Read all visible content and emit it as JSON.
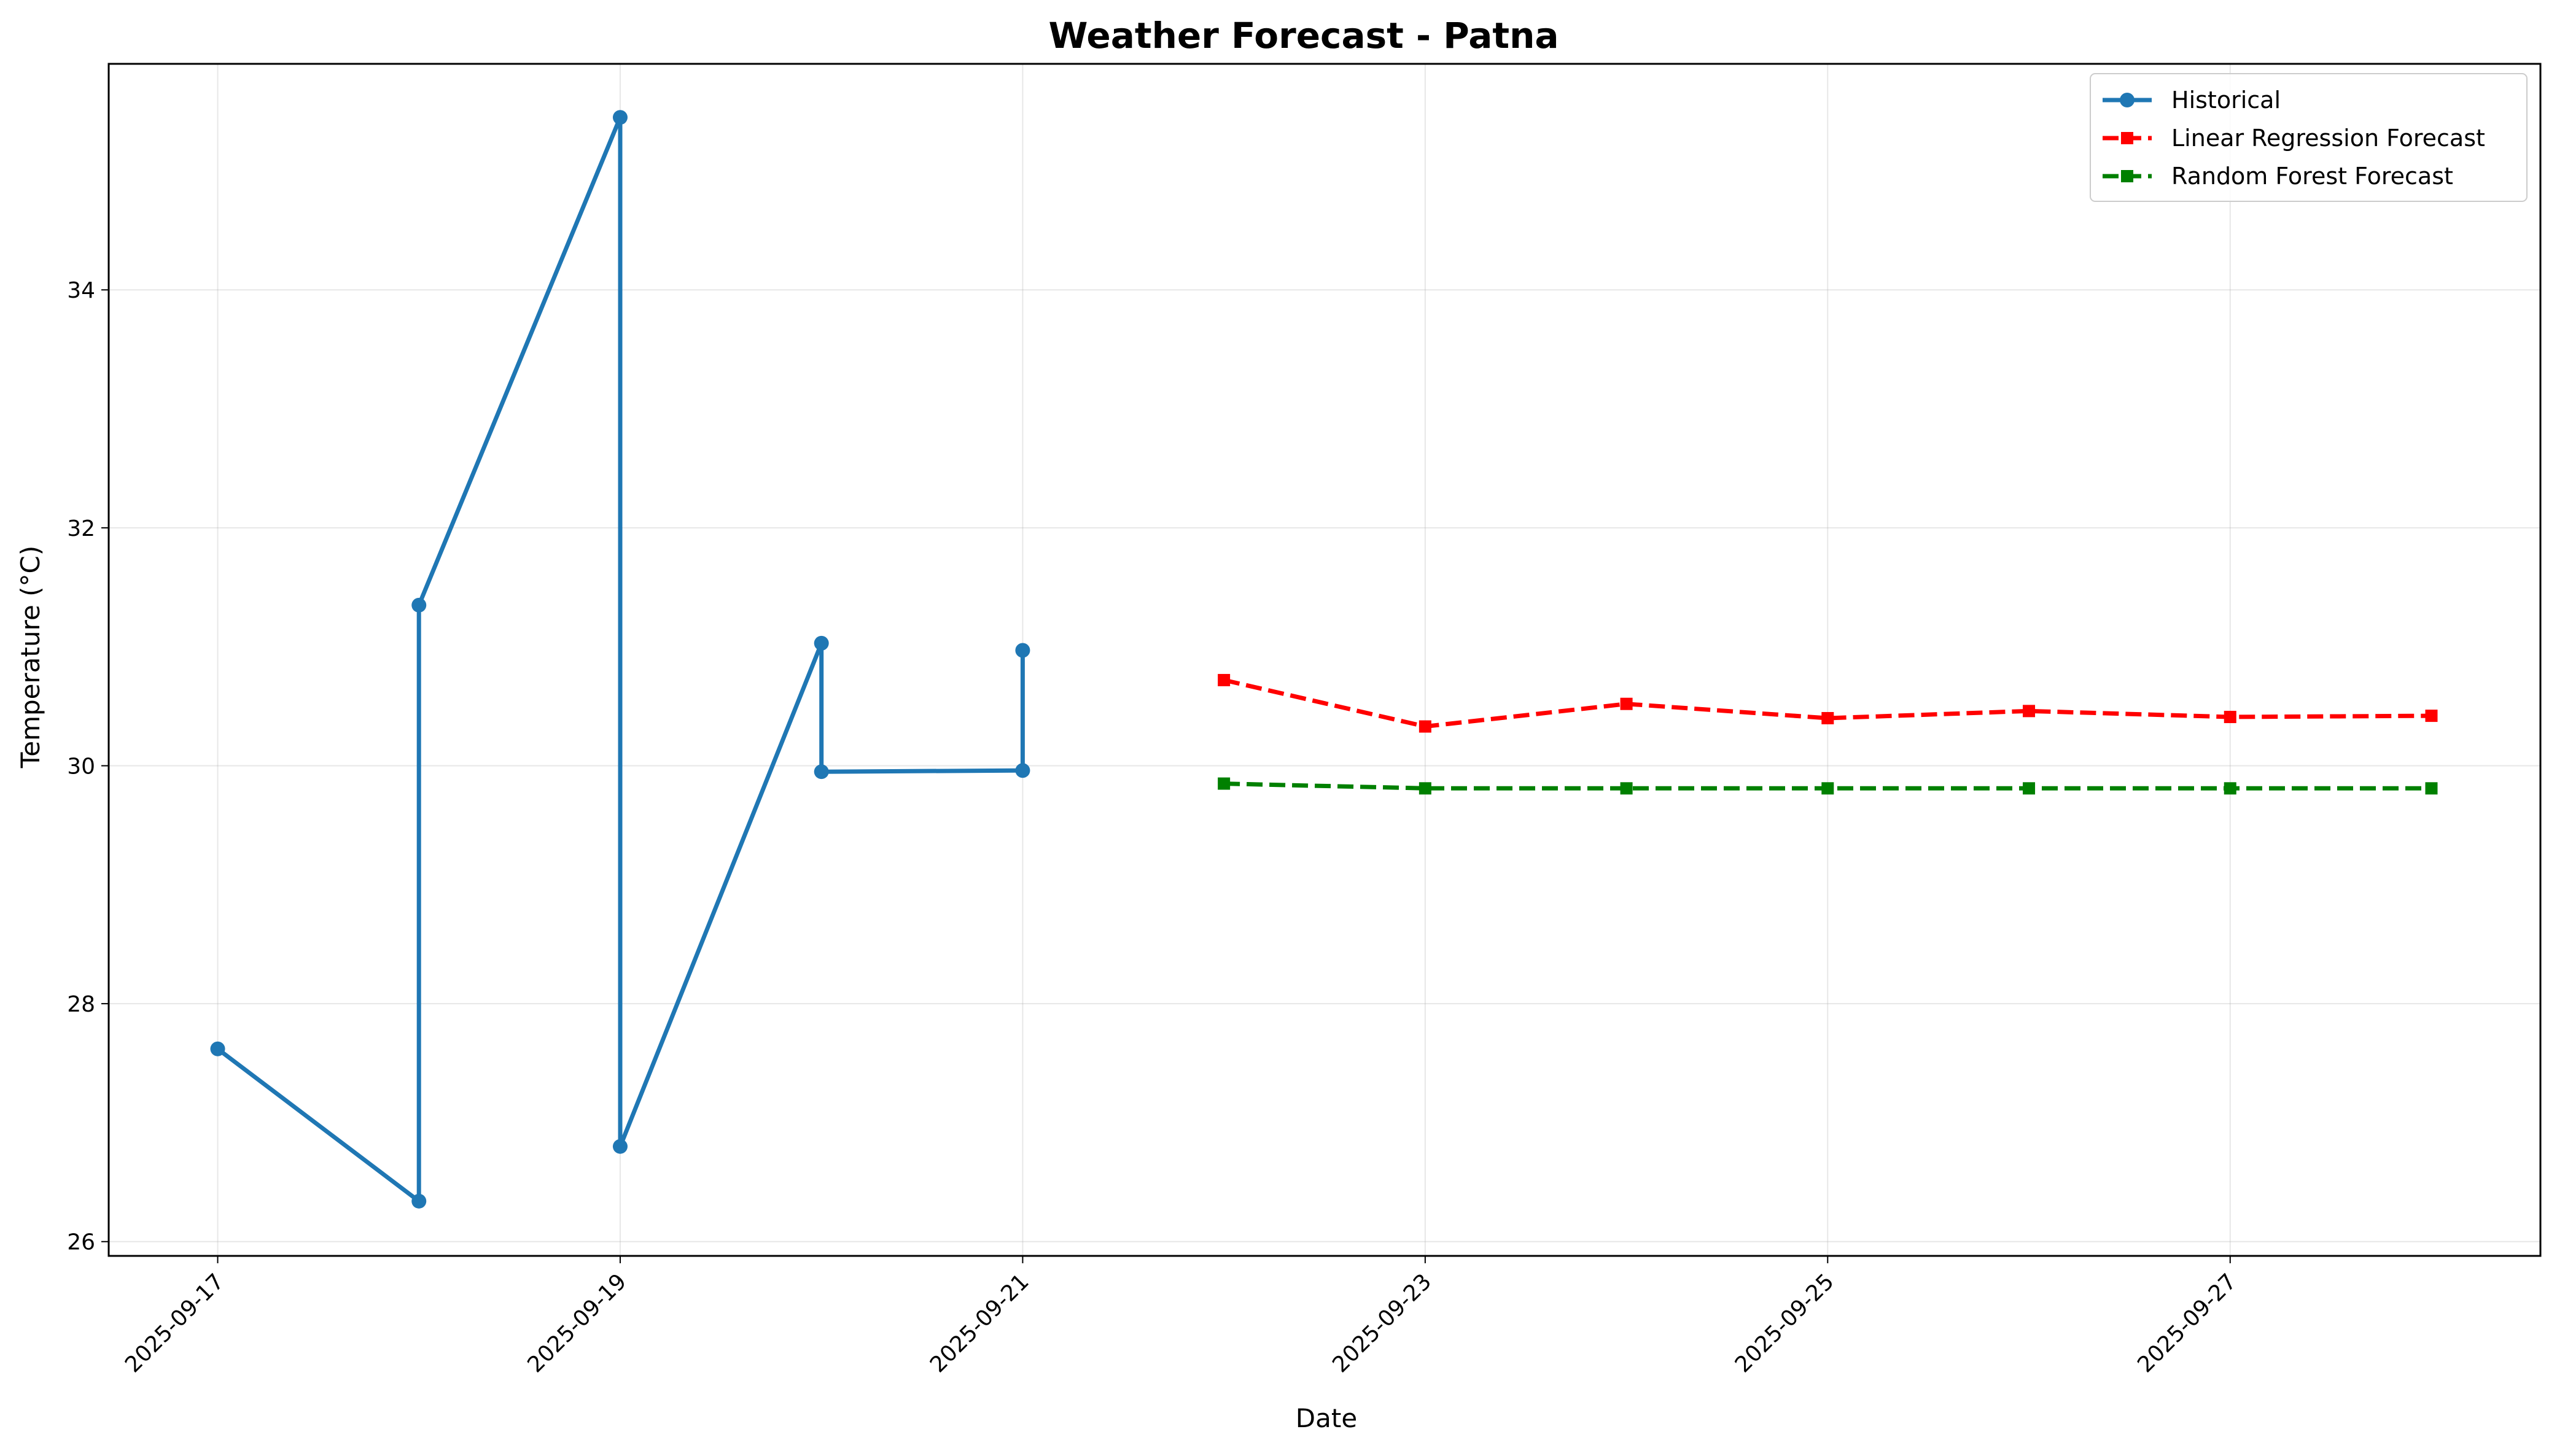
{
  "chart_data": {
    "type": "line",
    "title": "Weather Forecast - Patna",
    "xlabel": "Date",
    "ylabel": "Temperature (°C)",
    "x_axis_type": "date",
    "xlim": [
      "2025-09-16T11:00",
      "2025-09-28T13:00"
    ],
    "ylim": [
      25.88,
      35.9
    ],
    "x_ticks": [
      "2025-09-17",
      "2025-09-19",
      "2025-09-21",
      "2025-09-23",
      "2025-09-25",
      "2025-09-27"
    ],
    "y_ticks": [
      26,
      28,
      30,
      32,
      34
    ],
    "grid": true,
    "legend_position": "top-right",
    "series": [
      {
        "name": "Historical",
        "color": "#1f77b4",
        "line_style": "solid",
        "marker": "circle",
        "points": [
          {
            "x": "2025-09-17",
            "y": 27.62
          },
          {
            "x": "2025-09-18",
            "y": 26.34
          },
          {
            "x": "2025-09-18",
            "y": 31.35
          },
          {
            "x": "2025-09-19",
            "y": 35.45
          },
          {
            "x": "2025-09-19",
            "y": 26.8
          },
          {
            "x": "2025-09-20",
            "y": 31.03
          },
          {
            "x": "2025-09-20",
            "y": 29.95
          },
          {
            "x": "2025-09-21",
            "y": 29.96
          },
          {
            "x": "2025-09-21",
            "y": 30.97
          }
        ]
      },
      {
        "name": "Linear Regression Forecast",
        "color": "#ff0000",
        "line_style": "dashed",
        "marker": "square",
        "points": [
          {
            "x": "2025-09-22",
            "y": 30.72
          },
          {
            "x": "2025-09-23",
            "y": 30.33
          },
          {
            "x": "2025-09-24",
            "y": 30.52
          },
          {
            "x": "2025-09-25",
            "y": 30.4
          },
          {
            "x": "2025-09-26",
            "y": 30.46
          },
          {
            "x": "2025-09-27",
            "y": 30.41
          },
          {
            "x": "2025-09-28",
            "y": 30.42
          }
        ]
      },
      {
        "name": "Random Forest Forecast",
        "color": "#008000",
        "line_style": "dashed",
        "marker": "square",
        "points": [
          {
            "x": "2025-09-22",
            "y": 29.85
          },
          {
            "x": "2025-09-23",
            "y": 29.81
          },
          {
            "x": "2025-09-24",
            "y": 29.81
          },
          {
            "x": "2025-09-25",
            "y": 29.81
          },
          {
            "x": "2025-09-26",
            "y": 29.81
          },
          {
            "x": "2025-09-27",
            "y": 29.81
          },
          {
            "x": "2025-09-28",
            "y": 29.81
          }
        ]
      }
    ]
  }
}
